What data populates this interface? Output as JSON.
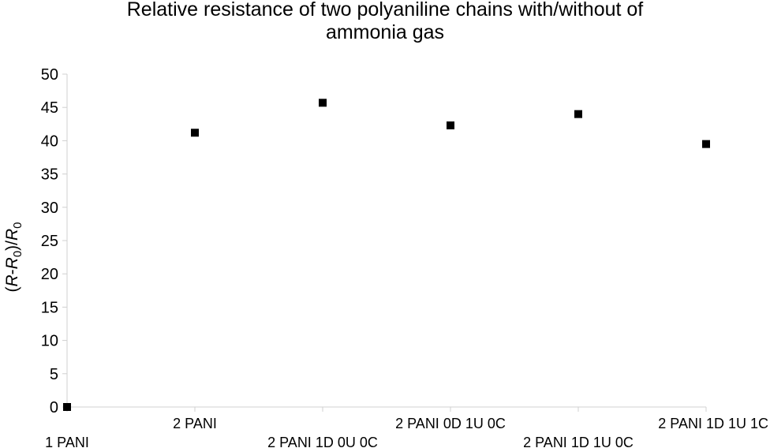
{
  "chart_data": {
    "type": "scatter",
    "title": "Relative resistance of two polyaniline chains with/without of\nammonia gas",
    "xlabel": "",
    "ylabel": {
      "parts": [
        "(",
        "R",
        "-",
        "R",
        "0",
        ")/",
        "R",
        "0"
      ]
    },
    "categories": [
      "1 PANI",
      "2 PANI",
      "2 PANI 1D 0U 0C",
      "2 PANI 0D 1U 0C",
      "2 PANI 1D 1U 0C",
      "2 PANI 1D 1U 1C"
    ],
    "values": [
      0,
      41.2,
      45.7,
      42.3,
      44.0,
      39.5
    ],
    "ylim": [
      0,
      50
    ],
    "yticks": [
      0,
      5,
      10,
      15,
      20,
      25,
      30,
      35,
      40,
      45,
      50
    ],
    "grid": false,
    "marker": "square",
    "marker_color": "#000000",
    "axis_color": "#d0d0d0"
  }
}
